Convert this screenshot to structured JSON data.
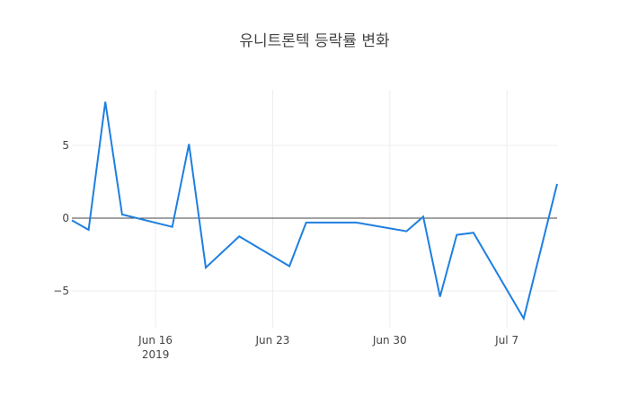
{
  "chart_data": {
    "type": "line",
    "title": "유니트론텍 등락률 변화",
    "xlabel": "",
    "ylabel": "",
    "x": [
      "2019-06-11",
      "2019-06-12",
      "2019-06-13",
      "2019-06-14",
      "2019-06-17",
      "2019-06-18",
      "2019-06-19",
      "2019-06-21",
      "2019-06-24",
      "2019-06-25",
      "2019-06-28",
      "2019-07-01",
      "2019-07-02",
      "2019-07-03",
      "2019-07-04",
      "2019-07-05",
      "2019-07-08",
      "2019-07-10"
    ],
    "series": [
      {
        "name": "등락률",
        "color": "#1f7fe0",
        "values": [
          -0.15,
          -0.8,
          8.0,
          0.25,
          -0.6,
          5.1,
          -3.4,
          -1.25,
          -3.3,
          -0.3,
          -0.3,
          -0.9,
          0.1,
          -5.4,
          -1.15,
          -1.0,
          -6.9,
          2.35
        ]
      }
    ],
    "x_ticks": [
      {
        "date": "2019-06-16",
        "label": "Jun 16",
        "sublabel": "2019"
      },
      {
        "date": "2019-06-23",
        "label": "Jun 23",
        "sublabel": ""
      },
      {
        "date": "2019-06-30",
        "label": "Jun 30",
        "sublabel": ""
      },
      {
        "date": "2019-07-07",
        "label": "Jul 7",
        "sublabel": ""
      }
    ],
    "y_ticks": [
      {
        "value": 5,
        "label": "5"
      },
      {
        "value": 0,
        "label": "0"
      },
      {
        "value": -5,
        "label": "−5"
      }
    ],
    "xlim": [
      "2019-06-11",
      "2019-07-10"
    ],
    "ylim": [
      -7.5,
      8.8
    ],
    "grid": true,
    "zeroline": true,
    "legend": "none"
  }
}
